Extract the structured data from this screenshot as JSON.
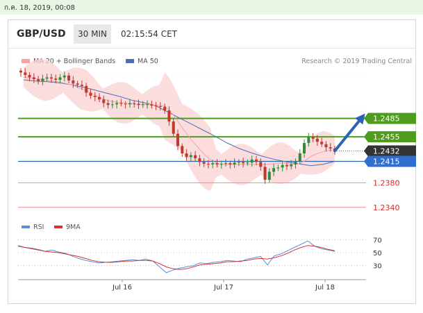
{
  "date_text": "ก.ค. 18, 2019, 00:08",
  "header": {
    "symbol": "GBP/USD",
    "interval": "30 MIN",
    "time": "02:15:54 CET"
  },
  "legend": {
    "ma20": "MA 20 + Bollinger Bands",
    "ma50": "MA 50",
    "credit": "Research © 2019 Trading Central"
  },
  "rsi_legend": {
    "rsi": "RSI",
    "ma9": "9MA"
  },
  "colors": {
    "green": "#4f9d1c",
    "blue_level": "#2a63b6",
    "dark_box": "#333333",
    "red_level": "#f08b8b",
    "ma50": "#4a6fb5",
    "ma20": "#f5a3a3",
    "band": "#fbd2d2",
    "rsi": "#5b8ed6",
    "rsi_ma": "#d93030"
  },
  "chart_data": [
    {
      "type": "line",
      "title": "GBP/USD 30 MIN",
      "x_ticks": [
        "Jul 16",
        "Jul 17",
        "Jul 18"
      ],
      "ylim": [
        1.2325,
        1.2565
      ],
      "levels": [
        {
          "value": 1.2485,
          "label": "1.2485",
          "style": "green-box"
        },
        {
          "value": 1.2455,
          "label": "1.2455",
          "style": "green-box"
        },
        {
          "value": 1.2432,
          "label": "1.2432",
          "style": "dark-box"
        },
        {
          "value": 1.2415,
          "label": "1.2415",
          "style": "blue-box"
        },
        {
          "value": 1.238,
          "label": "1.2380",
          "style": "red-text"
        },
        {
          "value": 1.234,
          "label": "1.2340",
          "style": "red-text"
        }
      ],
      "price_closes": [
        1.256,
        1.2556,
        1.2552,
        1.2549,
        1.2546,
        1.255,
        1.2552,
        1.255,
        1.2548,
        1.2552,
        1.2555,
        1.2547,
        1.2542,
        1.254,
        1.2538,
        1.2527,
        1.2522,
        1.252,
        1.2516,
        1.251,
        1.2507,
        1.2508,
        1.251,
        1.2509,
        1.2508,
        1.251,
        1.2509,
        1.2507,
        1.2508,
        1.2508,
        1.2506,
        1.2505,
        1.2504,
        1.2498,
        1.248,
        1.246,
        1.244,
        1.2428,
        1.2422,
        1.2425,
        1.242,
        1.2414,
        1.2411,
        1.241,
        1.2412,
        1.241,
        1.2411,
        1.2412,
        1.241,
        1.2413,
        1.2414,
        1.2412,
        1.2413,
        1.2418,
        1.2414,
        1.2406,
        1.2385,
        1.2398,
        1.2404,
        1.2405,
        1.2409,
        1.2407,
        1.241,
        1.2415,
        1.2428,
        1.2445,
        1.2455,
        1.2452,
        1.2447,
        1.2443,
        1.2438,
        1.2436,
        1.2432
      ],
      "ma20": [
        1.2552,
        1.2551,
        1.255,
        1.2549,
        1.2547,
        1.2546,
        1.2545,
        1.2543,
        1.2541,
        1.2538,
        1.2534,
        1.2531,
        1.2526,
        1.2521,
        1.2517,
        1.2514,
        1.2512,
        1.2511,
        1.251,
        1.2509,
        1.2508,
        1.2508,
        1.2508,
        1.2507,
        1.2506,
        1.2505,
        1.2496,
        1.2484,
        1.247,
        1.2458,
        1.2446,
        1.2436,
        1.2426,
        1.2418,
        1.2412,
        1.241,
        1.241,
        1.241,
        1.241,
        1.241,
        1.241,
        1.241,
        1.241,
        1.241,
        1.2411,
        1.2412,
        1.2412,
        1.2411,
        1.241,
        1.2412,
        1.2418,
        1.2424,
        1.2428,
        1.2431,
        1.2433,
        1.2434
      ],
      "ma50": [
        1.2548,
        1.2546,
        1.2545,
        1.2543,
        1.254,
        1.2536,
        1.2531,
        1.2526,
        1.2521,
        1.2515,
        1.2511,
        1.2506,
        1.2496,
        1.2486,
        1.2476,
        1.2466,
        1.2456,
        1.2445,
        1.2436,
        1.2429,
        1.2423,
        1.2418,
        1.2414,
        1.2411,
        1.2408,
        1.241,
        1.2415
      ],
      "forecast": [
        1.2432,
        1.2485
      ]
    },
    {
      "type": "line",
      "title": "RSI",
      "ylim": [
        20,
        80
      ],
      "y_ticks": [
        70,
        50,
        30
      ],
      "series": [
        {
          "name": "RSI",
          "values": [
            61,
            58,
            57,
            55,
            52,
            54,
            51,
            49,
            45,
            41,
            38,
            36,
            34,
            35,
            36,
            37,
            38,
            39,
            38,
            40,
            37,
            28,
            19,
            23,
            26,
            28,
            30,
            34,
            33,
            35,
            36,
            38,
            37,
            36,
            40,
            42,
            44,
            31,
            45,
            48,
            53,
            58,
            63,
            68,
            60,
            56,
            54,
            52
          ]
        },
        {
          "name": "9MA",
          "values": [
            60,
            58,
            56,
            54,
            52,
            51,
            50,
            48,
            46,
            44,
            41,
            38,
            36,
            35,
            35,
            36,
            37,
            37,
            38,
            38,
            37,
            33,
            28,
            25,
            24,
            25,
            28,
            31,
            32,
            33,
            34,
            36,
            36,
            37,
            38,
            40,
            41,
            40,
            42,
            45,
            49,
            54,
            58,
            61,
            60,
            58,
            55,
            53
          ]
        }
      ]
    }
  ]
}
